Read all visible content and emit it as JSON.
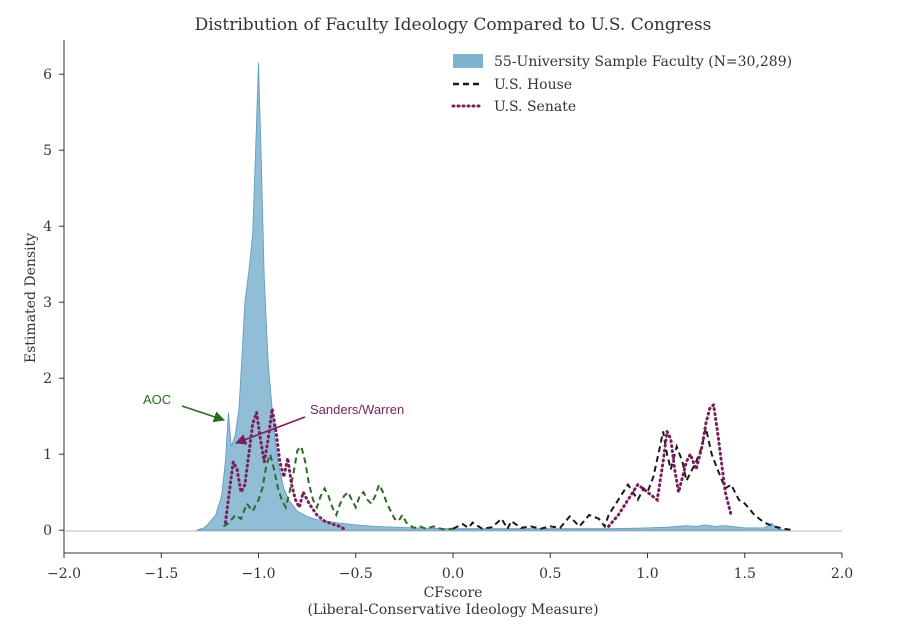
{
  "chart_data": {
    "type": "area",
    "title": "Distribution of Faculty Ideology Compared to U.S. Congress",
    "xlabel": "CFscore",
    "xlabel2": "(Liberal-Conservative Ideology Measure)",
    "ylabel": "Estimated Density",
    "xlim": [
      -2.0,
      2.0
    ],
    "ylim": [
      -0.3,
      6.45
    ],
    "xticks": [
      "−2.0",
      "−1.5",
      "−1.0",
      "−0.5",
      "0.0",
      "0.5",
      "1.0",
      "1.5",
      "2.0"
    ],
    "xtick_values": [
      -2.0,
      -1.5,
      -1.0,
      -0.5,
      0.0,
      0.5,
      1.0,
      1.5,
      2.0
    ],
    "yticks": [
      "0",
      "1",
      "2",
      "3",
      "4",
      "5",
      "6"
    ],
    "ytick_values": [
      0,
      1,
      2,
      3,
      4,
      5,
      6
    ],
    "grid": false,
    "legend_position": "top-right",
    "series": [
      {
        "name": "55-University Sample Faculty (N=30,289)",
        "style": "filled",
        "color": "#7fb2cf",
        "x": [
          -1.32,
          -1.28,
          -1.26,
          -1.22,
          -1.19,
          -1.17,
          -1.155,
          -1.14,
          -1.12,
          -1.1,
          -1.085,
          -1.07,
          -1.05,
          -1.03,
          -1.015,
          -1.0,
          -0.985,
          -0.97,
          -0.95,
          -0.92,
          -0.9,
          -0.87,
          -0.84,
          -0.8,
          -0.75,
          -0.7,
          -0.6,
          -0.5,
          -0.4,
          -0.2,
          0.0,
          0.2,
          0.4,
          0.6,
          0.8,
          1.0,
          1.1,
          1.2,
          1.25,
          1.3,
          1.35,
          1.4,
          1.5,
          1.6,
          1.64,
          1.66,
          1.68,
          1.72
        ],
        "y": [
          0,
          0.03,
          0.08,
          0.2,
          0.45,
          0.9,
          1.55,
          1.1,
          1.25,
          1.6,
          2.3,
          3.0,
          3.4,
          3.9,
          5.0,
          6.15,
          4.8,
          3.3,
          2.2,
          1.3,
          0.9,
          0.55,
          0.38,
          0.25,
          0.18,
          0.14,
          0.1,
          0.07,
          0.05,
          0.03,
          0.02,
          0.02,
          0.02,
          0.02,
          0.02,
          0.03,
          0.04,
          0.06,
          0.05,
          0.07,
          0.05,
          0.06,
          0.03,
          0.03,
          0.09,
          0.03,
          0.01,
          0
        ]
      },
      {
        "name": "U.S. House",
        "style": "dashed",
        "color": "#1a1a1a",
        "x": [
          0.0,
          0.05,
          0.08,
          0.1,
          0.15,
          0.2,
          0.25,
          0.28,
          0.3,
          0.35,
          0.4,
          0.45,
          0.5,
          0.55,
          0.58,
          0.6,
          0.65,
          0.7,
          0.75,
          0.78,
          0.8,
          0.85,
          0.9,
          0.95,
          0.98,
          1.0,
          1.03,
          1.06,
          1.08,
          1.1,
          1.12,
          1.15,
          1.18,
          1.2,
          1.25,
          1.28,
          1.3,
          1.33,
          1.36,
          1.4,
          1.43,
          1.47,
          1.5,
          1.55,
          1.6,
          1.65,
          1.7,
          1.75
        ],
        "y": [
          0.02,
          0.08,
          0.03,
          0.1,
          0.02,
          0.04,
          0.15,
          0.02,
          0.12,
          0.03,
          0.05,
          0.02,
          0.05,
          0.03,
          0.12,
          0.18,
          0.05,
          0.2,
          0.15,
          0.05,
          0.2,
          0.4,
          0.6,
          0.4,
          0.55,
          0.5,
          0.7,
          1.05,
          1.3,
          1.0,
          0.8,
          1.1,
          0.9,
          0.65,
          0.9,
          1.1,
          1.35,
          1.0,
          0.8,
          0.55,
          0.6,
          0.4,
          0.35,
          0.2,
          0.1,
          0.05,
          0.02,
          0.0
        ]
      },
      {
        "name": "U.S. Senate",
        "style": "dotted",
        "color": "#7a1f5c",
        "x": [
          -1.17,
          -1.15,
          -1.13,
          -1.11,
          -1.09,
          -1.07,
          -1.05,
          -1.03,
          -1.01,
          -0.99,
          -0.97,
          -0.95,
          -0.93,
          -0.91,
          -0.89,
          -0.87,
          -0.85,
          -0.83,
          -0.81,
          -0.79,
          -0.77,
          -0.74,
          -0.7,
          -0.66,
          -0.62,
          -0.58,
          -0.55,
          0.8,
          0.85,
          0.9,
          0.95,
          1.0,
          1.05,
          1.08,
          1.1,
          1.12,
          1.14,
          1.16,
          1.18,
          1.2,
          1.22,
          1.25,
          1.28,
          1.3,
          1.32,
          1.34,
          1.36,
          1.38,
          1.4,
          1.43
        ],
        "y": [
          0.1,
          0.5,
          0.9,
          0.8,
          0.5,
          0.6,
          1.0,
          1.4,
          1.55,
          1.2,
          0.9,
          1.2,
          1.6,
          1.3,
          0.9,
          0.7,
          0.95,
          0.6,
          0.4,
          0.3,
          0.5,
          0.35,
          0.2,
          0.12,
          0.08,
          0.05,
          0.0,
          0.05,
          0.2,
          0.4,
          0.6,
          0.5,
          0.4,
          0.9,
          1.3,
          1.2,
          0.8,
          0.5,
          0.7,
          0.9,
          1.0,
          0.8,
          1.1,
          1.4,
          1.6,
          1.65,
          1.3,
          0.9,
          0.5,
          0.2
        ]
      }
    ],
    "annotations": [
      {
        "text": "AOC",
        "color": "#2b6b24",
        "target": [
          -1.16,
          1.45
        ]
      },
      {
        "text": "Sanders/Warren",
        "color": "#7a1f5c",
        "target": [
          -1.13,
          1.15
        ]
      }
    ],
    "house_left_lobe": {
      "x": [
        -1.18,
        -1.15,
        -1.12,
        -1.09,
        -1.06,
        -1.03,
        -1.0,
        -0.98,
        -0.96,
        -0.94,
        -0.92,
        -0.9,
        -0.88,
        -0.86,
        -0.84,
        -0.82,
        -0.8,
        -0.78,
        -0.76,
        -0.74,
        -0.72,
        -0.7,
        -0.68,
        -0.66,
        -0.64,
        -0.62,
        -0.6,
        -0.58,
        -0.56,
        -0.54,
        -0.52,
        -0.5,
        -0.48,
        -0.46,
        -0.44,
        -0.42,
        -0.4,
        -0.38,
        -0.36,
        -0.34,
        -0.32,
        -0.3,
        -0.28,
        -0.26,
        -0.24,
        -0.22,
        -0.2,
        -0.17,
        -0.14,
        -0.1,
        -0.05,
        0.0
      ],
      "y": [
        0.05,
        0.1,
        0.2,
        0.15,
        0.35,
        0.25,
        0.4,
        0.55,
        0.85,
        1.0,
        0.8,
        0.55,
        0.4,
        0.3,
        0.5,
        0.75,
        1.05,
        1.1,
        0.9,
        0.6,
        0.4,
        0.3,
        0.45,
        0.55,
        0.45,
        0.3,
        0.2,
        0.35,
        0.45,
        0.5,
        0.4,
        0.3,
        0.45,
        0.5,
        0.4,
        0.35,
        0.45,
        0.6,
        0.5,
        0.35,
        0.25,
        0.15,
        0.12,
        0.2,
        0.1,
        0.06,
        0.03,
        0.05,
        0.02,
        0.05,
        0.01,
        0.02
      ]
    }
  }
}
